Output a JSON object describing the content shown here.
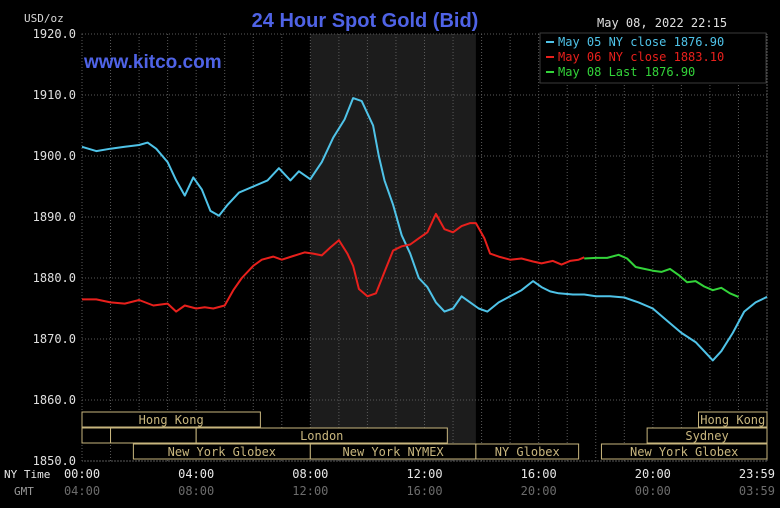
{
  "chart_data": {
    "type": "line",
    "title": "24 Hour Spot Gold (Bid)",
    "ylabel": "USD/oz",
    "watermark": "www.kitco.com",
    "timestamp": "May 08, 2022 22:15",
    "ylim": [
      1850,
      1920
    ],
    "yticks": [
      "1920.0",
      "1910.0",
      "1900.0",
      "1890.0",
      "1880.0",
      "1870.0",
      "1860.0",
      "1850.0"
    ],
    "xlim": [
      0,
      24
    ],
    "ny_time_label": "NY Time",
    "gmt_label": "GMT",
    "ny_ticks": [
      "00:00",
      "04:00",
      "08:00",
      "12:00",
      "16:00",
      "20:00",
      "23:59"
    ],
    "gmt_ticks": [
      "04:00",
      "08:00",
      "12:00",
      "16:00",
      "20:00",
      "00:00",
      "03:59"
    ],
    "nymex_shade": [
      8.0,
      13.8
    ],
    "legend": [
      {
        "label": "May 05 NY close 1876.90",
        "color": "#4fc3e8"
      },
      {
        "label": "May 06 NY close 1883.10",
        "color": "#e8201c"
      },
      {
        "label": "May 08 Last 1876.90",
        "color": "#33d43a"
      }
    ],
    "series": [
      {
        "name": "May 05 NY close 1876.90",
        "color": "#4fc3e8",
        "points": [
          [
            0,
            1901.5
          ],
          [
            0.5,
            1900.8
          ],
          [
            1,
            1901.2
          ],
          [
            1.5,
            1901.5
          ],
          [
            2,
            1901.8
          ],
          [
            2.3,
            1902.2
          ],
          [
            2.6,
            1901.2
          ],
          [
            3,
            1899
          ],
          [
            3.3,
            1896
          ],
          [
            3.6,
            1893.5
          ],
          [
            3.9,
            1896.5
          ],
          [
            4.2,
            1894.5
          ],
          [
            4.5,
            1891
          ],
          [
            4.8,
            1890.2
          ],
          [
            5.1,
            1892
          ],
          [
            5.5,
            1894
          ],
          [
            6,
            1895
          ],
          [
            6.5,
            1896
          ],
          [
            6.9,
            1898
          ],
          [
            7.3,
            1896
          ],
          [
            7.6,
            1897.5
          ],
          [
            8,
            1896.2
          ],
          [
            8.4,
            1899
          ],
          [
            8.8,
            1903
          ],
          [
            9.2,
            1906
          ],
          [
            9.5,
            1909.5
          ],
          [
            9.8,
            1909
          ],
          [
            10,
            1907
          ],
          [
            10.2,
            1905
          ],
          [
            10.4,
            1900
          ],
          [
            10.6,
            1896
          ],
          [
            10.9,
            1892
          ],
          [
            11.2,
            1887
          ],
          [
            11.5,
            1884
          ],
          [
            11.8,
            1880
          ],
          [
            12.1,
            1878.5
          ],
          [
            12.4,
            1876
          ],
          [
            12.7,
            1874.5
          ],
          [
            13,
            1875
          ],
          [
            13.3,
            1877
          ],
          [
            13.6,
            1876
          ],
          [
            13.9,
            1875
          ],
          [
            14.2,
            1874.5
          ],
          [
            14.6,
            1876
          ],
          [
            15,
            1877
          ],
          [
            15.4,
            1878
          ],
          [
            15.8,
            1879.5
          ],
          [
            16.1,
            1878.5
          ],
          [
            16.4,
            1877.8
          ],
          [
            16.7,
            1877.5
          ],
          [
            17.2,
            1877.3
          ],
          [
            17.6,
            1877.3
          ],
          [
            18,
            1877
          ],
          [
            18.5,
            1877
          ],
          [
            19,
            1876.8
          ],
          [
            19.5,
            1876
          ],
          [
            20,
            1875
          ],
          [
            20.5,
            1873
          ],
          [
            21,
            1871
          ],
          [
            21.5,
            1869.5
          ],
          [
            21.8,
            1868
          ],
          [
            22.1,
            1866.5
          ],
          [
            22.4,
            1868
          ],
          [
            22.8,
            1871
          ],
          [
            23.2,
            1874.5
          ],
          [
            23.6,
            1876
          ],
          [
            24,
            1876.9
          ]
        ]
      },
      {
        "name": "May 06 NY close 1883.10",
        "color": "#e8201c",
        "points": [
          [
            0,
            1876.5
          ],
          [
            0.5,
            1876.5
          ],
          [
            1,
            1876
          ],
          [
            1.5,
            1875.8
          ],
          [
            2,
            1876.4
          ],
          [
            2.5,
            1875.5
          ],
          [
            3,
            1875.8
          ],
          [
            3.3,
            1874.5
          ],
          [
            3.6,
            1875.5
          ],
          [
            4,
            1875
          ],
          [
            4.3,
            1875.2
          ],
          [
            4.6,
            1875
          ],
          [
            5,
            1875.5
          ],
          [
            5.3,
            1878
          ],
          [
            5.6,
            1880
          ],
          [
            6,
            1882
          ],
          [
            6.3,
            1883
          ],
          [
            6.7,
            1883.5
          ],
          [
            7,
            1883
          ],
          [
            7.4,
            1883.6
          ],
          [
            7.8,
            1884.2
          ],
          [
            8.1,
            1884
          ],
          [
            8.4,
            1883.7
          ],
          [
            8.7,
            1885
          ],
          [
            9,
            1886.2
          ],
          [
            9.3,
            1884
          ],
          [
            9.5,
            1882
          ],
          [
            9.7,
            1878.2
          ],
          [
            10,
            1877
          ],
          [
            10.3,
            1877.5
          ],
          [
            10.6,
            1881
          ],
          [
            10.9,
            1884.5
          ],
          [
            11.2,
            1885.2
          ],
          [
            11.5,
            1885.5
          ],
          [
            11.8,
            1886.5
          ],
          [
            12.1,
            1887.5
          ],
          [
            12.4,
            1890.5
          ],
          [
            12.7,
            1888
          ],
          [
            13,
            1887.5
          ],
          [
            13.3,
            1888.5
          ],
          [
            13.6,
            1889
          ],
          [
            13.8,
            1889
          ],
          [
            14.1,
            1886.5
          ],
          [
            14.3,
            1884
          ],
          [
            14.6,
            1883.5
          ],
          [
            15,
            1883
          ],
          [
            15.4,
            1883.2
          ],
          [
            15.8,
            1882.7
          ],
          [
            16.1,
            1882.4
          ],
          [
            16.5,
            1882.8
          ],
          [
            16.8,
            1882.2
          ],
          [
            17.1,
            1882.8
          ],
          [
            17.4,
            1883
          ],
          [
            17.6,
            1883.4
          ]
        ]
      },
      {
        "name": "May 08 Last 1876.90",
        "color": "#33d43a",
        "points": [
          [
            17.6,
            1883.2
          ],
          [
            18,
            1883.3
          ],
          [
            18.4,
            1883.3
          ],
          [
            18.8,
            1883.8
          ],
          [
            19.1,
            1883.2
          ],
          [
            19.4,
            1881.8
          ],
          [
            19.7,
            1881.5
          ],
          [
            20,
            1881.2
          ],
          [
            20.3,
            1881
          ],
          [
            20.6,
            1881.5
          ],
          [
            20.9,
            1880.5
          ],
          [
            21.2,
            1879.3
          ],
          [
            21.5,
            1879.5
          ],
          [
            21.8,
            1878.6
          ],
          [
            22.1,
            1878
          ],
          [
            22.4,
            1878.4
          ],
          [
            22.7,
            1877.5
          ],
          [
            23,
            1876.9
          ]
        ]
      }
    ],
    "sessions": [
      {
        "label": "Hong Kong",
        "row": 0,
        "start": 0,
        "end": 6.25
      },
      {
        "label": "Hong Kong",
        "row": 0,
        "start": 21.6,
        "end": 24
      },
      {
        "label": "",
        "row": 1,
        "start": 0,
        "end": 1.0
      },
      {
        "label": "",
        "row": 1,
        "start": 1.0,
        "end": 4.0
      },
      {
        "label": "London",
        "row": 1,
        "start": 4.0,
        "end": 12.8
      },
      {
        "label": "Sydney",
        "row": 1,
        "start": 19.8,
        "end": 24
      },
      {
        "label": "New York Globex",
        "row": 2,
        "start": 1.8,
        "end": 8.0
      },
      {
        "label": "New York NYMEX",
        "row": 2,
        "start": 8.0,
        "end": 13.8
      },
      {
        "label": "NY Globex",
        "row": 2,
        "start": 13.8,
        "end": 17.4
      },
      {
        "label": "New York Globex",
        "row": 2,
        "start": 18.2,
        "end": 24
      }
    ]
  }
}
